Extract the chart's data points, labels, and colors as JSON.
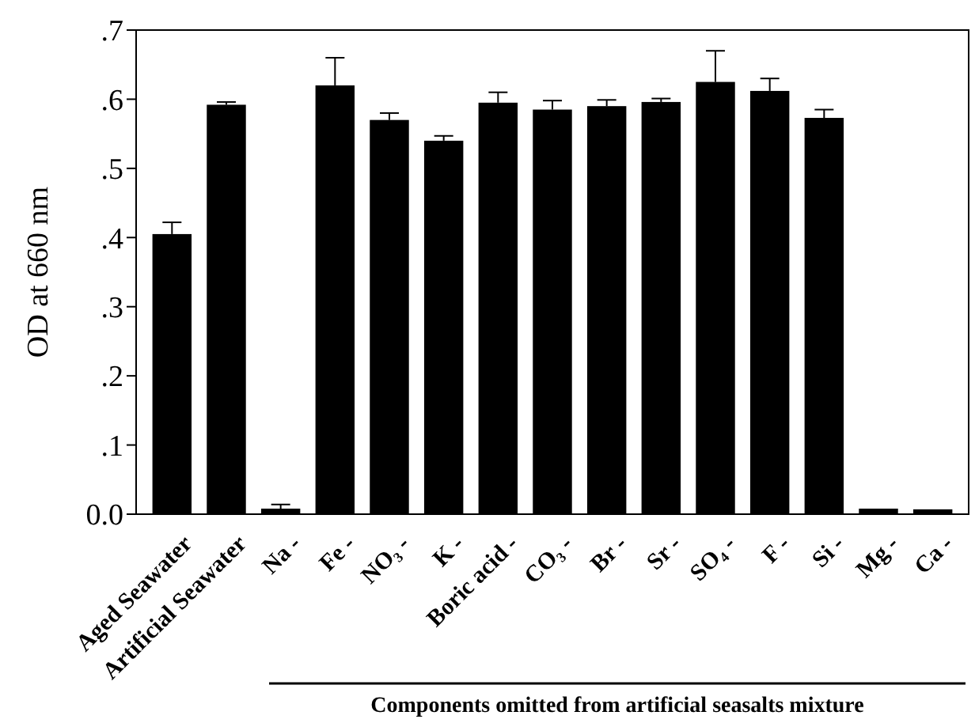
{
  "chart_data": {
    "type": "bar",
    "ylabel": "OD at 660 nm",
    "categories": [
      "Aged Seawater",
      "Artificial Seawater",
      "Na -",
      "Fe -",
      "NO₃ -",
      "K -",
      "Boric acid -",
      "CO₃ -",
      "Br -",
      "Sr -",
      "SO₄ -",
      "F -",
      "Si -",
      "Mg -",
      "Ca -"
    ],
    "values": [
      0.405,
      0.592,
      0.008,
      0.62,
      0.57,
      0.54,
      0.595,
      0.585,
      0.59,
      0.596,
      0.625,
      0.612,
      0.573,
      0.008,
      0.007
    ],
    "errors": [
      [
        0.405,
        0.422
      ],
      [
        0.592,
        0.596
      ],
      [
        0.008,
        0.014
      ],
      [
        0.62,
        0.66
      ],
      [
        0.57,
        0.58
      ],
      [
        0.54,
        0.547
      ],
      [
        0.595,
        0.61
      ],
      [
        0.585,
        0.598
      ],
      [
        0.59,
        0.599
      ],
      [
        0.596,
        0.601
      ],
      [
        0.625,
        0.67
      ],
      [
        0.612,
        0.63
      ],
      [
        0.573,
        0.585
      ],
      null,
      null
    ],
    "color": "#000000",
    "ylim": [
      0,
      0.7
    ],
    "yticks": [
      {
        "value": 0,
        "label": "0.0"
      },
      {
        "value": 0.1,
        "label": ".1"
      },
      {
        "value": 0.2,
        "label": ".2"
      },
      {
        "value": 0.3,
        "label": ".3"
      },
      {
        "value": 0.4,
        "label": ".4"
      },
      {
        "value": 0.5,
        "label": ".5"
      },
      {
        "value": 0.6,
        "label": ".6"
      },
      {
        "value": 0.7,
        "label": ".7"
      }
    ],
    "annotations": [
      "Components omitted from artificial seasalts mixture"
    ],
    "tick_labels": true
  }
}
